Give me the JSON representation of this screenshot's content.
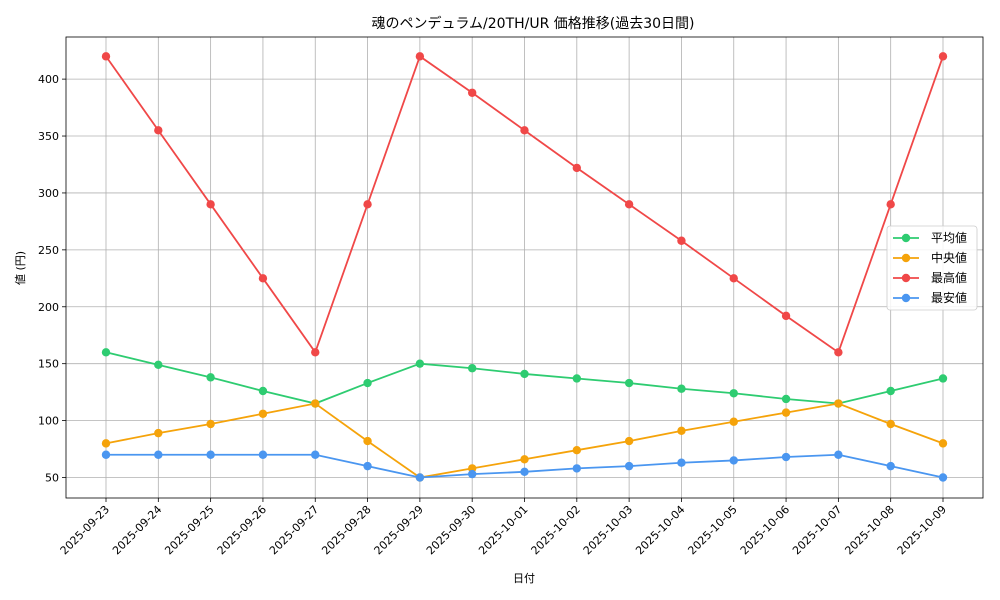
{
  "chart_data": {
    "type": "line",
    "title": "魂のペンデュラム/20TH/UR 価格推移(過去30日間)",
    "xlabel": "日付",
    "ylabel": "値 (円)",
    "categories": [
      "2025-09-23",
      "2025-09-24",
      "2025-09-25",
      "2025-09-26",
      "2025-09-27",
      "2025-09-28",
      "2025-09-29",
      "2025-09-30",
      "2025-10-01",
      "2025-10-02",
      "2025-10-03",
      "2025-10-04",
      "2025-10-05",
      "2025-10-06",
      "2025-10-07",
      "2025-10-08",
      "2025-10-09"
    ],
    "ylim": [
      32,
      437
    ],
    "yticks": [
      50,
      100,
      150,
      200,
      250,
      300,
      350,
      400
    ],
    "grid": true,
    "legend_position": "center-right",
    "series": [
      {
        "name": "平均値",
        "color": "#2ecc71",
        "values": [
          160,
          149,
          138,
          126,
          115,
          133,
          150,
          146,
          141,
          137,
          133,
          128,
          124,
          119,
          115,
          126,
          137
        ]
      },
      {
        "name": "中央値",
        "color": "#f5a30a",
        "values": [
          80,
          89,
          97,
          106,
          115,
          82,
          50,
          58,
          66,
          74,
          82,
          91,
          99,
          107,
          115,
          97,
          80
        ]
      },
      {
        "name": "最高値",
        "color": "#f04848",
        "values": [
          420,
          355,
          290,
          225,
          160,
          290,
          420,
          388,
          355,
          322,
          290,
          258,
          225,
          192,
          160,
          290,
          420
        ]
      },
      {
        "name": "最安値",
        "color": "#4a96f0",
        "values": [
          70,
          70,
          70,
          70,
          70,
          60,
          50,
          53,
          55,
          58,
          60,
          63,
          65,
          68,
          70,
          60,
          50
        ]
      }
    ]
  }
}
